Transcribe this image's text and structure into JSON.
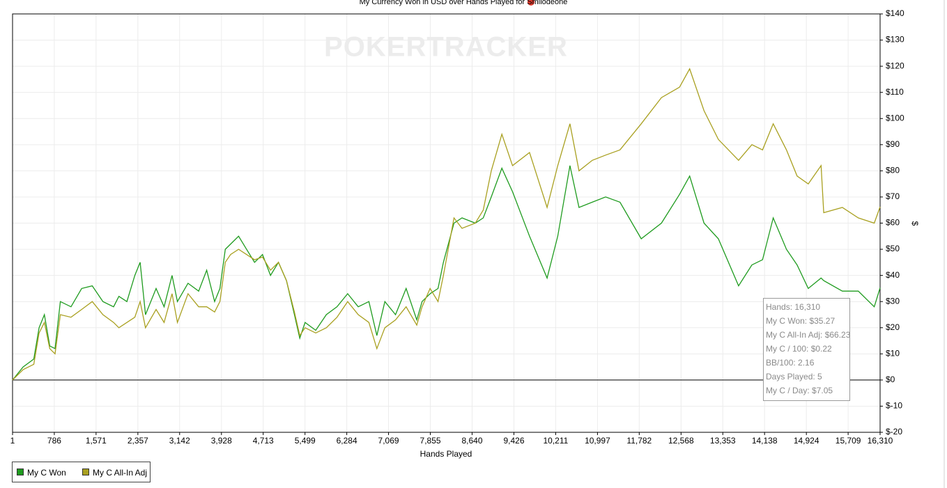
{
  "chart_data": {
    "type": "line",
    "title": "My Currency Won in USD over Hands Played for Smilodeone",
    "watermark": "POKERTRACKER",
    "x_label": "Hands Played",
    "y_label": "$",
    "x": [
      1,
      200,
      400,
      500,
      600,
      700,
      800,
      900,
      1100,
      1300,
      1500,
      1700,
      1900,
      2000,
      2150,
      2300,
      2400,
      2500,
      2700,
      2850,
      3000,
      3100,
      3300,
      3500,
      3650,
      3800,
      3900,
      4000,
      4100,
      4250,
      4400,
      4550,
      4700,
      4850,
      5000,
      5150,
      5300,
      5400,
      5500,
      5700,
      5900,
      6100,
      6300,
      6500,
      6700,
      6850,
      7000,
      7200,
      7400,
      7600,
      7700,
      7850,
      8000,
      8100,
      8300,
      8450,
      8700,
      8850,
      9000,
      9200,
      9400,
      9720,
      10050,
      10250,
      10480,
      10650,
      10900,
      11150,
      11420,
      11820,
      12200,
      12540,
      12730,
      13000,
      13270,
      13650,
      13900,
      14100,
      14300,
      14550,
      14750,
      14960,
      15200,
      15250,
      15600,
      15900,
      16200,
      16310
    ],
    "series": [
      {
        "name": "My C Won",
        "color": "#1e9b1e",
        "values": [
          0,
          5,
          8,
          20,
          25,
          13,
          12,
          30,
          28,
          35,
          36,
          30,
          28,
          32,
          30,
          40,
          45,
          25,
          35,
          28,
          40,
          30,
          37,
          34,
          42,
          30,
          35,
          50,
          52,
          55,
          50,
          45,
          48,
          40,
          45,
          38,
          25,
          16,
          22,
          19,
          25,
          28,
          33,
          28,
          30,
          17,
          30,
          25,
          35,
          23,
          30,
          33,
          35,
          45,
          60,
          62,
          60,
          62,
          70,
          81,
          72,
          55,
          39,
          55,
          82,
          66,
          68,
          70,
          68,
          54,
          60,
          71,
          78,
          60,
          54,
          36,
          44,
          46,
          62,
          50,
          44,
          35,
          39,
          38,
          34,
          34,
          28,
          35.27
        ]
      },
      {
        "name": "My C All-In Adj",
        "color": "#a9a020",
        "values": [
          0,
          4,
          6,
          18,
          22,
          12,
          10,
          25,
          24,
          27,
          30,
          25,
          22,
          20,
          22,
          24,
          30,
          20,
          27,
          22,
          33,
          22,
          33,
          28,
          28,
          26,
          30,
          45,
          48,
          50,
          48,
          46,
          47,
          42,
          45,
          38,
          26,
          17,
          20,
          18,
          20,
          24,
          30,
          25,
          22,
          12,
          20,
          23,
          28,
          21,
          28,
          35,
          30,
          40,
          62,
          58,
          60,
          65,
          80,
          94,
          82,
          87,
          66,
          82,
          98,
          80,
          84,
          86,
          88,
          98,
          108,
          112,
          119,
          103,
          92,
          84,
          90,
          88,
          98,
          88,
          78,
          75,
          82,
          64,
          66,
          62,
          60,
          66.23
        ]
      }
    ],
    "xlim": [
      1,
      16310
    ],
    "xticks": [
      {
        "value": 1,
        "label": "1"
      },
      {
        "value": 786,
        "label": "786"
      },
      {
        "value": 1571,
        "label": "1,571"
      },
      {
        "value": 2357,
        "label": "2,357"
      },
      {
        "value": 3142,
        "label": "3,142"
      },
      {
        "value": 3928,
        "label": "3,928"
      },
      {
        "value": 4713,
        "label": "4,713"
      },
      {
        "value": 5499,
        "label": "5,499"
      },
      {
        "value": 6284,
        "label": "6,284"
      },
      {
        "value": 7069,
        "label": "7,069"
      },
      {
        "value": 7855,
        "label": "7,855"
      },
      {
        "value": 8640,
        "label": "8,640"
      },
      {
        "value": 9426,
        "label": "9,426"
      },
      {
        "value": 10211,
        "label": "10,211"
      },
      {
        "value": 10997,
        "label": "10,997"
      },
      {
        "value": 11782,
        "label": "11,782"
      },
      {
        "value": 12568,
        "label": "12,568"
      },
      {
        "value": 13353,
        "label": "13,353"
      },
      {
        "value": 14138,
        "label": "14,138"
      },
      {
        "value": 14924,
        "label": "14,924"
      },
      {
        "value": 15709,
        "label": "15,709"
      },
      {
        "value": 16310,
        "label": "16,310"
      }
    ],
    "ylim": [
      -20,
      140
    ],
    "yticks": [
      {
        "value": -20,
        "label": "$-20"
      },
      {
        "value": -10,
        "label": "$-10"
      },
      {
        "value": 0,
        "label": "$0"
      },
      {
        "value": 10,
        "label": "$10"
      },
      {
        "value": 20,
        "label": "$20"
      },
      {
        "value": 30,
        "label": "$30"
      },
      {
        "value": 40,
        "label": "$40"
      },
      {
        "value": 50,
        "label": "$50"
      },
      {
        "value": 60,
        "label": "$60"
      },
      {
        "value": 70,
        "label": "$70"
      },
      {
        "value": 80,
        "label": "$80"
      },
      {
        "value": 90,
        "label": "$90"
      },
      {
        "value": 100,
        "label": "$100"
      },
      {
        "value": 110,
        "label": "$110"
      },
      {
        "value": 120,
        "label": "$120"
      },
      {
        "value": 130,
        "label": "$130"
      },
      {
        "value": 140,
        "label": "$140"
      }
    ],
    "grid": true,
    "y_axis_side": "right",
    "tooltip": [
      "Hands: 16,310",
      "My C Won: $35.27",
      "My C All-In Adj: $66.23",
      "My C / 100: $0.22",
      "BB/100: 2.16",
      "Days Played: 5",
      "My C / Day: $7.05"
    ]
  }
}
